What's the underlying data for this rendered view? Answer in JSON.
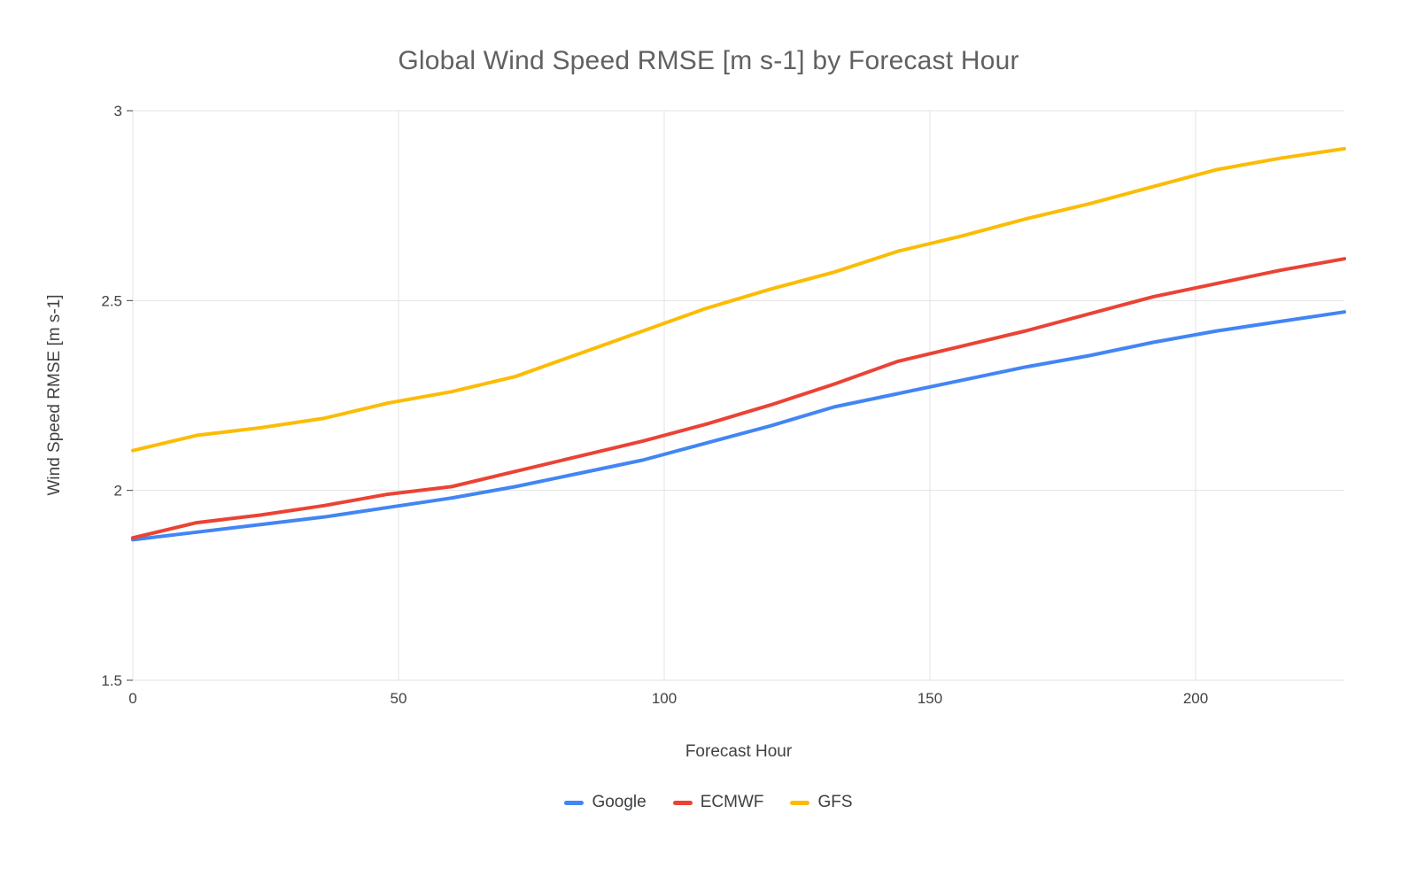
{
  "chart_data": {
    "type": "line",
    "title": "Global Wind Speed RMSE [m s-1] by Forecast Hour",
    "xlabel": "Forecast Hour",
    "ylabel": "Wind Speed RMSE [m s-1]",
    "xlim": [
      0,
      228
    ],
    "ylim": [
      1.5,
      3
    ],
    "x_ticks": [
      0,
      50,
      100,
      150,
      200
    ],
    "y_ticks": [
      1.5,
      2,
      2.5,
      3
    ],
    "grid": true,
    "legend_position": "bottom",
    "gridline_color": "#e3e3e3",
    "x": [
      0,
      12,
      24,
      36,
      48,
      60,
      72,
      84,
      96,
      108,
      120,
      132,
      144,
      156,
      168,
      180,
      192,
      204,
      216,
      228
    ],
    "series": [
      {
        "name": "Google",
        "color": "#4285F4",
        "values": [
          1.87,
          1.89,
          1.91,
          1.93,
          1.955,
          1.98,
          2.01,
          2.045,
          2.08,
          2.125,
          2.17,
          2.22,
          2.255,
          2.29,
          2.325,
          2.355,
          2.39,
          2.42,
          2.445,
          2.47
        ]
      },
      {
        "name": "ECMWF",
        "color": "#EA4335",
        "values": [
          1.875,
          1.915,
          1.935,
          1.96,
          1.99,
          2.01,
          2.05,
          2.09,
          2.13,
          2.175,
          2.225,
          2.28,
          2.34,
          2.38,
          2.42,
          2.465,
          2.51,
          2.545,
          2.58,
          2.61
        ]
      },
      {
        "name": "GFS",
        "color": "#FBBC04",
        "values": [
          2.105,
          2.145,
          2.165,
          2.19,
          2.23,
          2.26,
          2.3,
          2.36,
          2.42,
          2.48,
          2.53,
          2.575,
          2.63,
          2.67,
          2.715,
          2.755,
          2.8,
          2.845,
          2.875,
          2.9
        ]
      }
    ]
  }
}
